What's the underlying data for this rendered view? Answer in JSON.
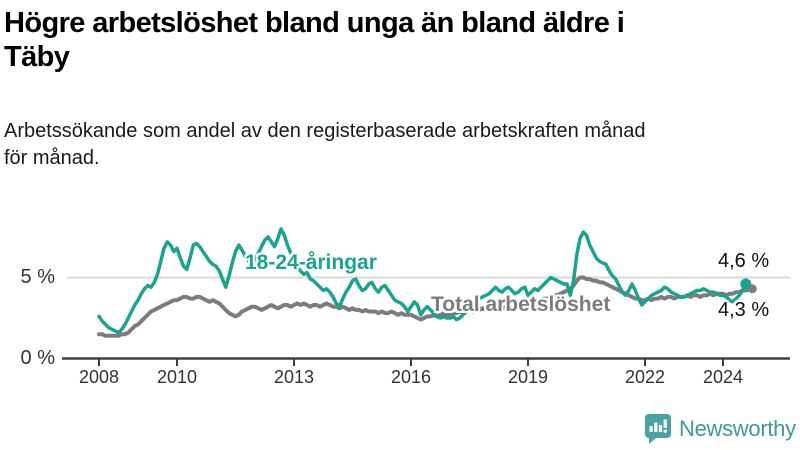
{
  "header": {
    "title_line1": "Högre arbetslöshet bland unga än bland äldre i",
    "title_line2": "Täby",
    "subtitle_line1": "Arbetssökande som andel av den registerbaserade arbetskraften månad",
    "subtitle_line2": "för månad."
  },
  "chart_data": {
    "type": "line",
    "title": "Högre arbetslöshet bland unga än bland äldre i Täby",
    "subtitle": "Arbetssökande som andel av den registerbaserade arbetskraften månad för månad.",
    "unit": "%",
    "x_start": "2008-01",
    "x_frequency": "monthly",
    "x_tick_years": [
      2008,
      2010,
      2013,
      2016,
      2019,
      2022,
      2024
    ],
    "x_tick_labels": [
      "2008",
      "2010",
      "2013",
      "2016",
      "2019",
      "2022",
      "2024"
    ],
    "y_ticks": [
      {
        "value": 0,
        "label": "0 %"
      },
      {
        "value": 5,
        "label": "5 %"
      }
    ],
    "ylim": [
      0,
      8.4
    ],
    "grid": "single light horizontal gridline at 5 %",
    "legend_position": "inline labels on lines",
    "series": [
      {
        "name": "Total arbetslöshet",
        "color": "#7c7c7c",
        "end_value": 4.3,
        "end_label": "4,3 %",
        "values": [
          1.5,
          1.5,
          1.4,
          1.4,
          1.4,
          1.4,
          1.4,
          1.5,
          1.5,
          1.6,
          1.8,
          2.0,
          2.1,
          2.3,
          2.5,
          2.7,
          2.9,
          3.0,
          3.1,
          3.2,
          3.3,
          3.4,
          3.5,
          3.6,
          3.6,
          3.7,
          3.8,
          3.8,
          3.7,
          3.7,
          3.8,
          3.8,
          3.7,
          3.6,
          3.5,
          3.6,
          3.5,
          3.4,
          3.2,
          3.0,
          2.8,
          2.7,
          2.6,
          2.7,
          2.9,
          3.0,
          3.1,
          3.2,
          3.2,
          3.1,
          3.0,
          3.1,
          3.2,
          3.3,
          3.2,
          3.1,
          3.2,
          3.3,
          3.3,
          3.2,
          3.3,
          3.4,
          3.3,
          3.4,
          3.3,
          3.2,
          3.3,
          3.3,
          3.2,
          3.3,
          3.4,
          3.3,
          3.2,
          3.2,
          3.1,
          3.2,
          3.1,
          3.0,
          3.1,
          3.0,
          3.0,
          2.9,
          3.0,
          2.9,
          2.9,
          2.9,
          2.8,
          2.9,
          2.8,
          2.8,
          2.9,
          2.8,
          2.7,
          2.8,
          2.7,
          2.7,
          2.7,
          2.6,
          2.5,
          2.4,
          2.5,
          2.6,
          2.6,
          2.7,
          2.6,
          2.7,
          2.8,
          2.7,
          2.7,
          2.8,
          2.8,
          2.9,
          2.8,
          2.9,
          3.0,
          2.9,
          3.0,
          3.0,
          3.1,
          3.0,
          3.0,
          3.1,
          3.1,
          3.2,
          3.1,
          3.2,
          3.2,
          3.3,
          3.2,
          3.3,
          3.3,
          3.4,
          3.4,
          3.5,
          3.5,
          3.6,
          3.6,
          3.7,
          3.7,
          3.8,
          3.9,
          3.9,
          4.0,
          4.1,
          4.2,
          4.3,
          4.5,
          4.8,
          5.0,
          5.0,
          4.9,
          4.9,
          4.8,
          4.8,
          4.7,
          4.7,
          4.6,
          4.5,
          4.4,
          4.3,
          4.2,
          4.1,
          4.0,
          3.9,
          3.8,
          3.7,
          3.7,
          3.6,
          3.6,
          3.7,
          3.6,
          3.7,
          3.7,
          3.8,
          3.7,
          3.8,
          3.8,
          3.7,
          3.8,
          3.8,
          3.8,
          3.9,
          3.8,
          3.9,
          3.9,
          3.8,
          3.9,
          3.9,
          4.0,
          3.9,
          4.0,
          4.0,
          4.0,
          3.9,
          4.0,
          4.0,
          4.1,
          4.1,
          4.2,
          4.2,
          4.25,
          4.3
        ]
      },
      {
        "name": "18-24-åringar",
        "color": "#1aa38f",
        "end_value": 4.6,
        "end_label": "4,6 %",
        "values": [
          2.6,
          2.3,
          2.1,
          1.9,
          1.8,
          1.7,
          1.6,
          1.8,
          2.1,
          2.5,
          2.9,
          3.3,
          3.6,
          4.0,
          4.3,
          4.5,
          4.4,
          4.7,
          5.2,
          6.0,
          6.8,
          7.2,
          7.0,
          6.6,
          6.8,
          6.2,
          5.7,
          5.5,
          6.2,
          7.0,
          7.1,
          6.9,
          6.6,
          6.3,
          6.0,
          5.8,
          5.7,
          5.4,
          4.9,
          4.4,
          5.1,
          5.9,
          6.6,
          7.0,
          6.7,
          6.3,
          6.0,
          5.8,
          6.1,
          6.5,
          6.9,
          7.3,
          7.5,
          7.2,
          6.9,
          7.4,
          8.0,
          7.6,
          7.0,
          6.5,
          6.0,
          5.7,
          5.4,
          5.2,
          5.3,
          4.9,
          4.8,
          4.6,
          4.4,
          4.2,
          4.3,
          4.1,
          3.8,
          3.4,
          3.2,
          3.7,
          4.1,
          4.4,
          4.8,
          4.9,
          4.5,
          4.2,
          4.3,
          4.6,
          4.7,
          4.3,
          4.1,
          4.4,
          4.5,
          4.2,
          3.9,
          3.6,
          3.5,
          3.4,
          3.2,
          2.9,
          3.2,
          3.5,
          3.3,
          2.7,
          3.0,
          3.2,
          3.0,
          2.8,
          2.6,
          2.5,
          2.6,
          2.5,
          2.5,
          2.6,
          2.4,
          2.5,
          2.7,
          2.9,
          3.1,
          3.3,
          3.5,
          3.7,
          3.8,
          3.9,
          4.0,
          4.2,
          4.4,
          4.2,
          4.1,
          4.3,
          4.4,
          4.2,
          4.0,
          4.1,
          4.3,
          4.4,
          3.9,
          4.1,
          4.3,
          4.2,
          4.4,
          4.6,
          4.8,
          5.0,
          4.9,
          4.8,
          4.7,
          4.6,
          4.6,
          3.9,
          4.8,
          6.4,
          7.4,
          7.8,
          7.6,
          7.0,
          6.6,
          6.2,
          6.0,
          5.9,
          5.8,
          5.4,
          5.1,
          4.9,
          4.5,
          4.1,
          3.9,
          4.2,
          4.6,
          4.2,
          3.7,
          3.3,
          3.5,
          3.7,
          3.9,
          4.0,
          4.1,
          4.2,
          4.4,
          4.3,
          4.1,
          4.0,
          3.9,
          3.8,
          3.8,
          3.9,
          4.0,
          4.1,
          4.2,
          4.2,
          4.3,
          4.2,
          4.1,
          4.1,
          4.0,
          3.9,
          3.9,
          3.8,
          3.6,
          3.5,
          3.7,
          3.9,
          4.2,
          4.6
        ]
      }
    ],
    "annotations": {
      "series_label_youth": "18-24-åringar",
      "series_label_total": "Total arbetslöshet",
      "end_label_youth": "4,6 %",
      "end_label_total": "4,3 %"
    }
  },
  "colors": {
    "youth_line": "#1aa38f",
    "total_line": "#7c7c7c",
    "gridline": "#d8d8d8",
    "axis": "#404040",
    "text": "#1a1a1a",
    "brand_teal": "#3d9a99",
    "logo_bubble": "#4aa2a1"
  },
  "footer": {
    "brand": "Newsworthy",
    "logo_icon": "bar-chart-speech-bubble-icon"
  }
}
